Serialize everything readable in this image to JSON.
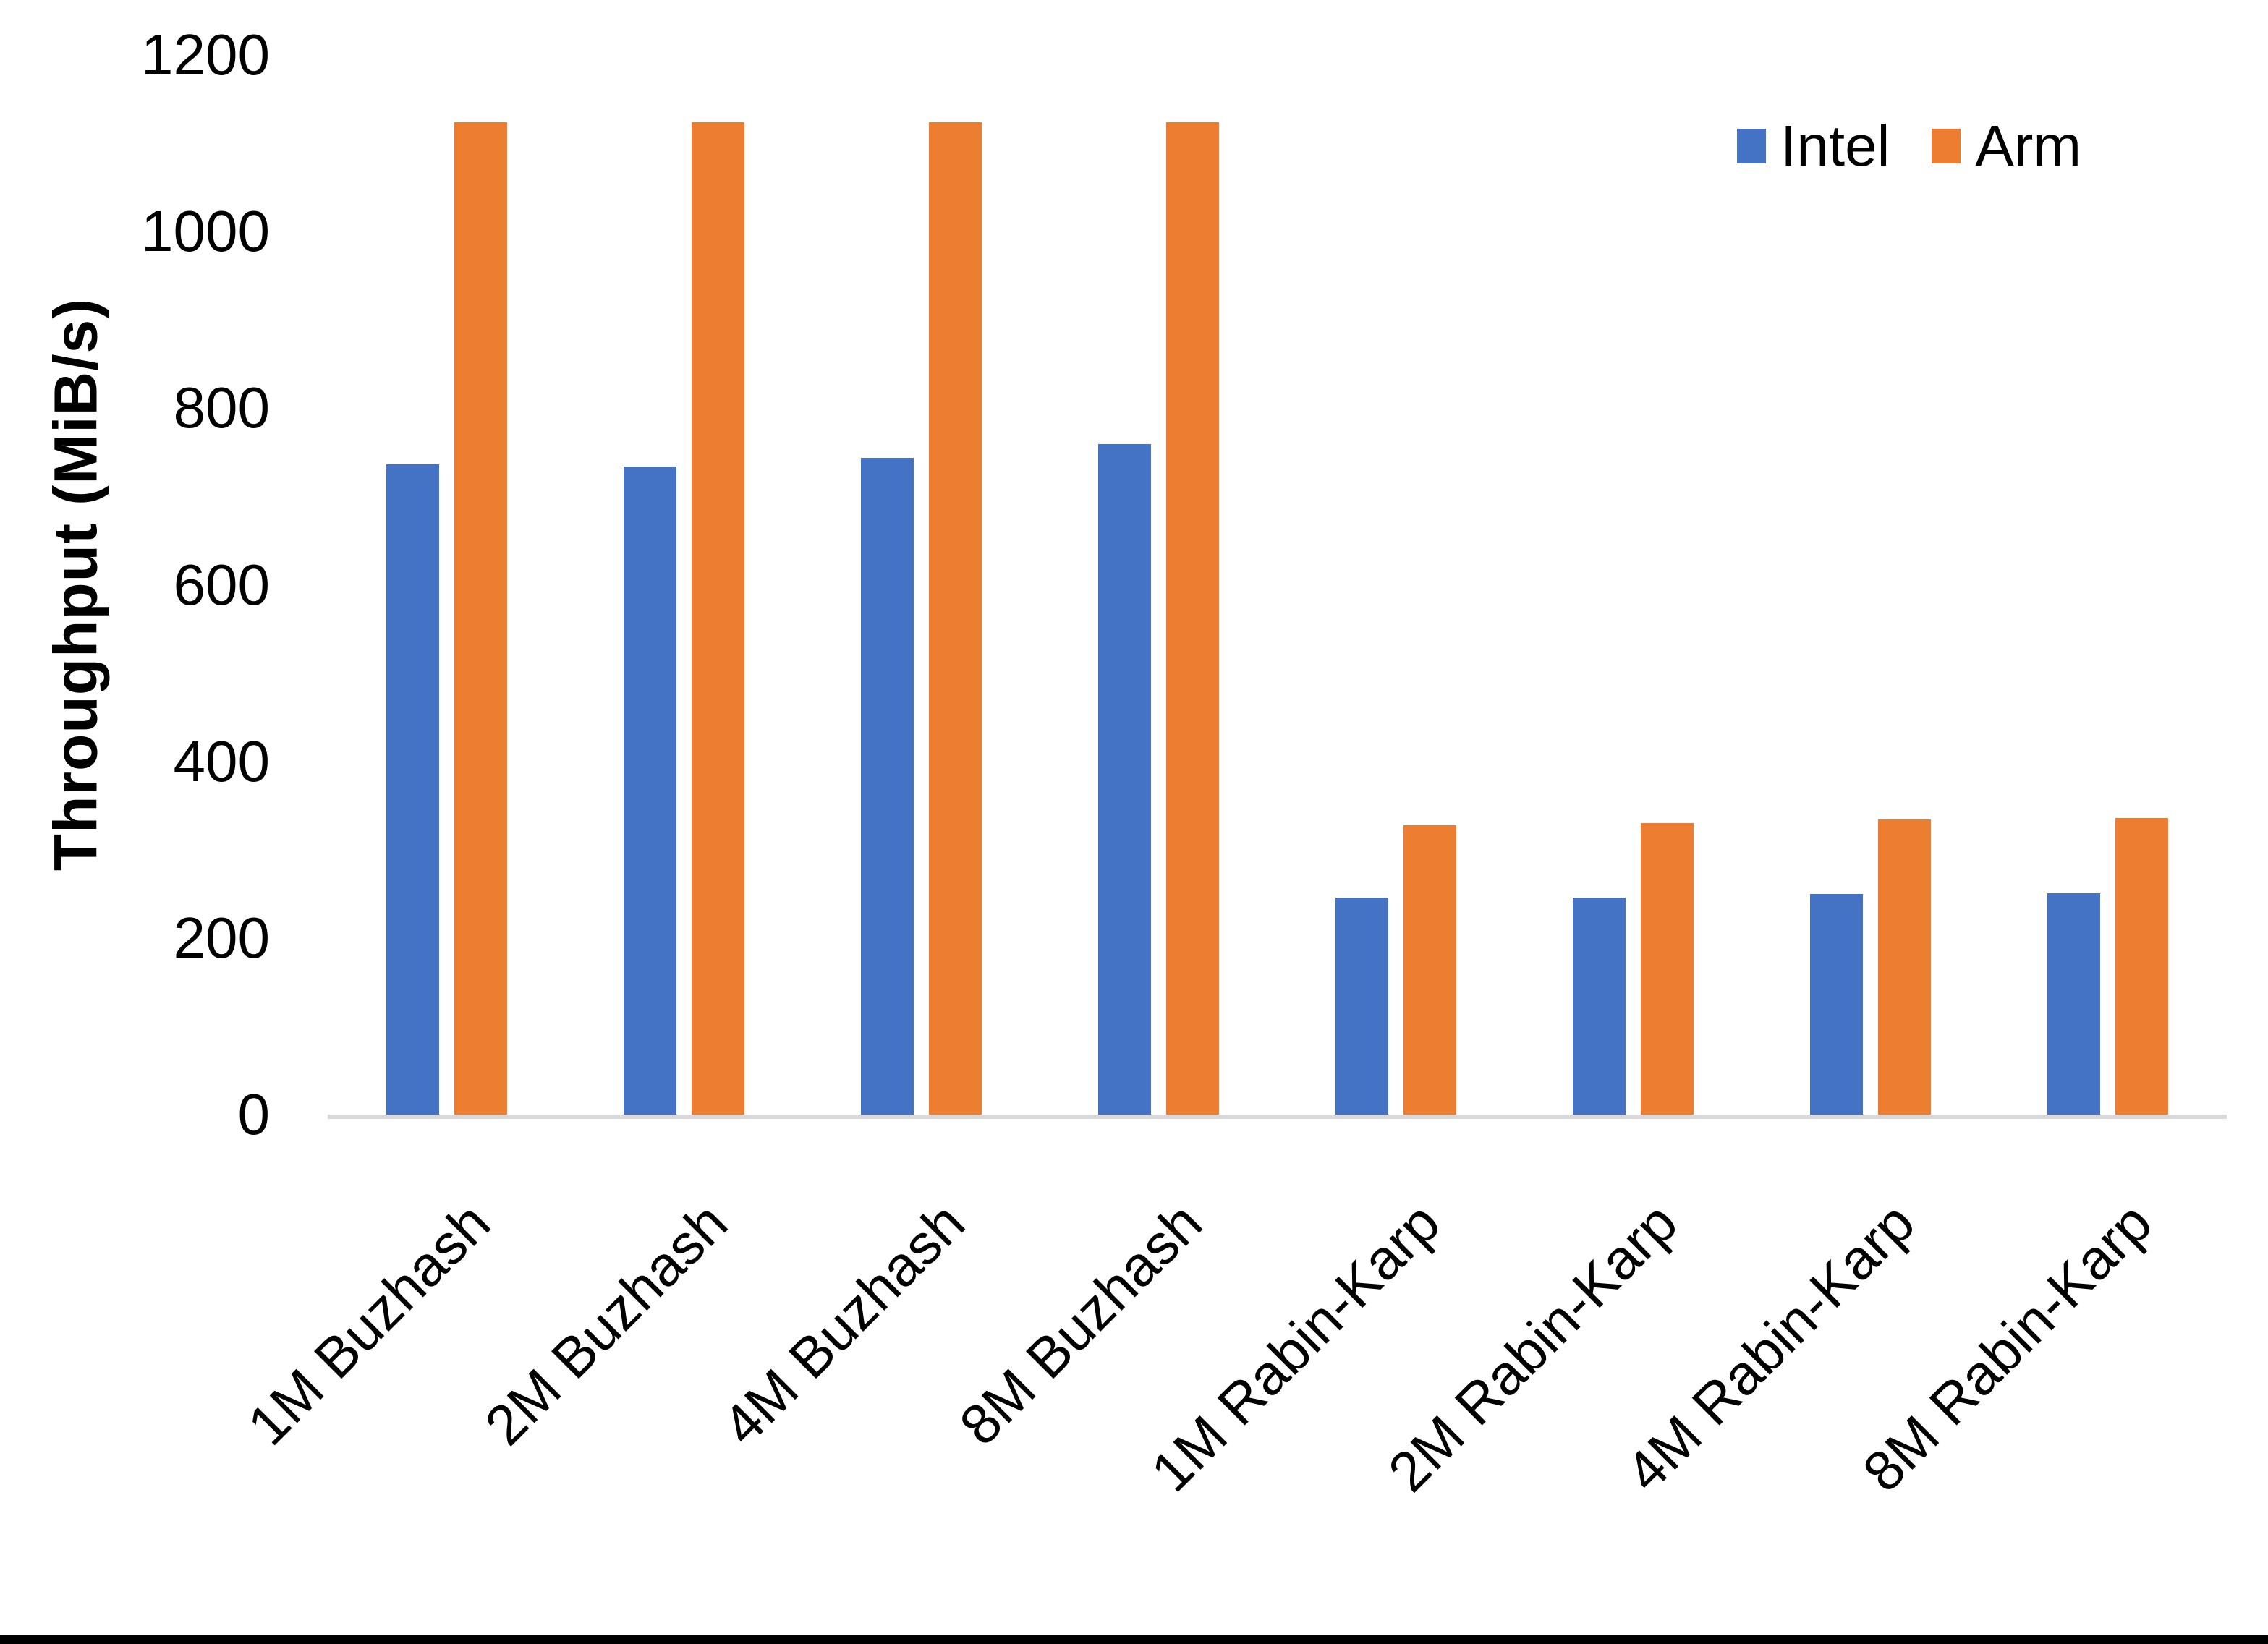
{
  "chart_data": {
    "type": "bar",
    "title": "",
    "xlabel": "",
    "ylabel": "Throughput (MiB/s)",
    "ylim": [
      0,
      1200
    ],
    "yticks": [
      0,
      200,
      400,
      600,
      800,
      1000,
      1200
    ],
    "grid": false,
    "legend_position": "top-right",
    "categories": [
      "1M Buzhash",
      "2M Buzhash",
      "4M Buzhash",
      "8M Buzhash",
      "1M Rabin-Karp",
      "2M Rabin-Karp",
      "4M Rabin-Karp",
      "8M Rabin-Karp"
    ],
    "series": [
      {
        "name": "Intel",
        "color": "#4472C4",
        "values": [
          736,
          734,
          744,
          759,
          246,
          246,
          250,
          251
        ]
      },
      {
        "name": "Arm",
        "color": "#ED7D31",
        "values": [
          1124,
          1124,
          1124,
          1124,
          328,
          330,
          334,
          336
        ]
      }
    ],
    "colors": {
      "axis_line": "#D9D9D9",
      "text": "#000000",
      "background": "#FFFFFF",
      "bottom_border": "#000000"
    }
  }
}
